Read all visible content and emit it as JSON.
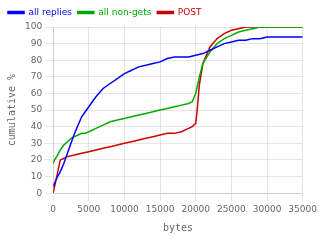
{
  "chart_data": {
    "type": "line",
    "xlabel": "bytes",
    "ylabel": "cumulative %",
    "xlim": [
      0,
      35000
    ],
    "ylim": [
      0,
      100
    ],
    "xticks": [
      0,
      5000,
      10000,
      15000,
      20000,
      25000,
      30000,
      35000
    ],
    "yticks": [
      0,
      10,
      20,
      30,
      40,
      50,
      60,
      70,
      80,
      90,
      100
    ],
    "grid": true,
    "legend": "upper left",
    "series": [
      {
        "name": "all replies",
        "color": "#0000ff",
        "x": [
          0,
          200,
          500,
          1000,
          1500,
          2000,
          2500,
          3000,
          3500,
          4000,
          4500,
          5000,
          6000,
          7000,
          8000,
          9000,
          10000,
          11000,
          12000,
          13000,
          14000,
          15000,
          16000,
          17000,
          18000,
          19000,
          20000,
          21000,
          22000,
          23000,
          24000,
          25000,
          26000,
          27000,
          28000,
          29000,
          30000,
          31000,
          32000,
          33000,
          34000,
          35000
        ],
        "values": [
          4,
          6,
          9,
          13,
          18,
          24,
          30,
          36,
          41,
          46,
          49,
          52,
          58,
          63,
          66,
          69,
          72,
          74,
          76,
          77,
          78,
          79,
          81,
          82,
          82,
          82,
          83,
          84,
          86,
          88,
          90,
          91,
          92,
          92,
          93,
          93,
          94,
          94,
          94,
          94,
          94,
          94
        ]
      },
      {
        "name": "all non-gets",
        "color": "#00aa00",
        "x": [
          0,
          200,
          500,
          1000,
          1500,
          2000,
          2500,
          3000,
          3500,
          4000,
          4500,
          5000,
          6000,
          7000,
          8000,
          9000,
          10000,
          11000,
          12000,
          13000,
          14000,
          15000,
          16000,
          17000,
          18000,
          19000,
          19500,
          20000,
          20500,
          21000,
          22000,
          23000,
          24000,
          25000,
          26000,
          27000,
          28000,
          29000,
          30000,
          31000,
          35000
        ],
        "values": [
          18,
          20,
          22,
          26,
          29,
          31,
          33,
          34,
          35,
          36,
          36,
          37,
          39,
          41,
          43,
          44,
          45,
          46,
          47,
          48,
          49,
          50,
          51,
          52,
          53,
          54,
          55,
          60,
          70,
          78,
          85,
          90,
          93,
          95,
          97,
          98,
          99,
          100,
          100,
          100,
          100
        ]
      },
      {
        "name": "POST",
        "color": "#cc0000",
        "x": [
          0,
          1000,
          2000,
          3000,
          4000,
          5000,
          6000,
          7000,
          8000,
          9000,
          10000,
          11000,
          12000,
          13000,
          14000,
          15000,
          16000,
          17000,
          18000,
          19000,
          19500,
          20000,
          20200,
          20500,
          21000,
          22000,
          23000,
          24000,
          25000,
          26000,
          27000,
          28000,
          29000,
          30000,
          31000,
          35000
        ],
        "values": [
          0,
          20,
          22,
          23,
          24,
          25,
          26,
          27,
          28,
          29,
          30,
          31,
          32,
          33,
          34,
          35,
          36,
          36,
          37,
          39,
          40,
          42,
          50,
          65,
          78,
          88,
          93,
          96,
          98,
          99,
          100,
          100,
          100,
          100,
          100,
          100
        ]
      }
    ]
  }
}
